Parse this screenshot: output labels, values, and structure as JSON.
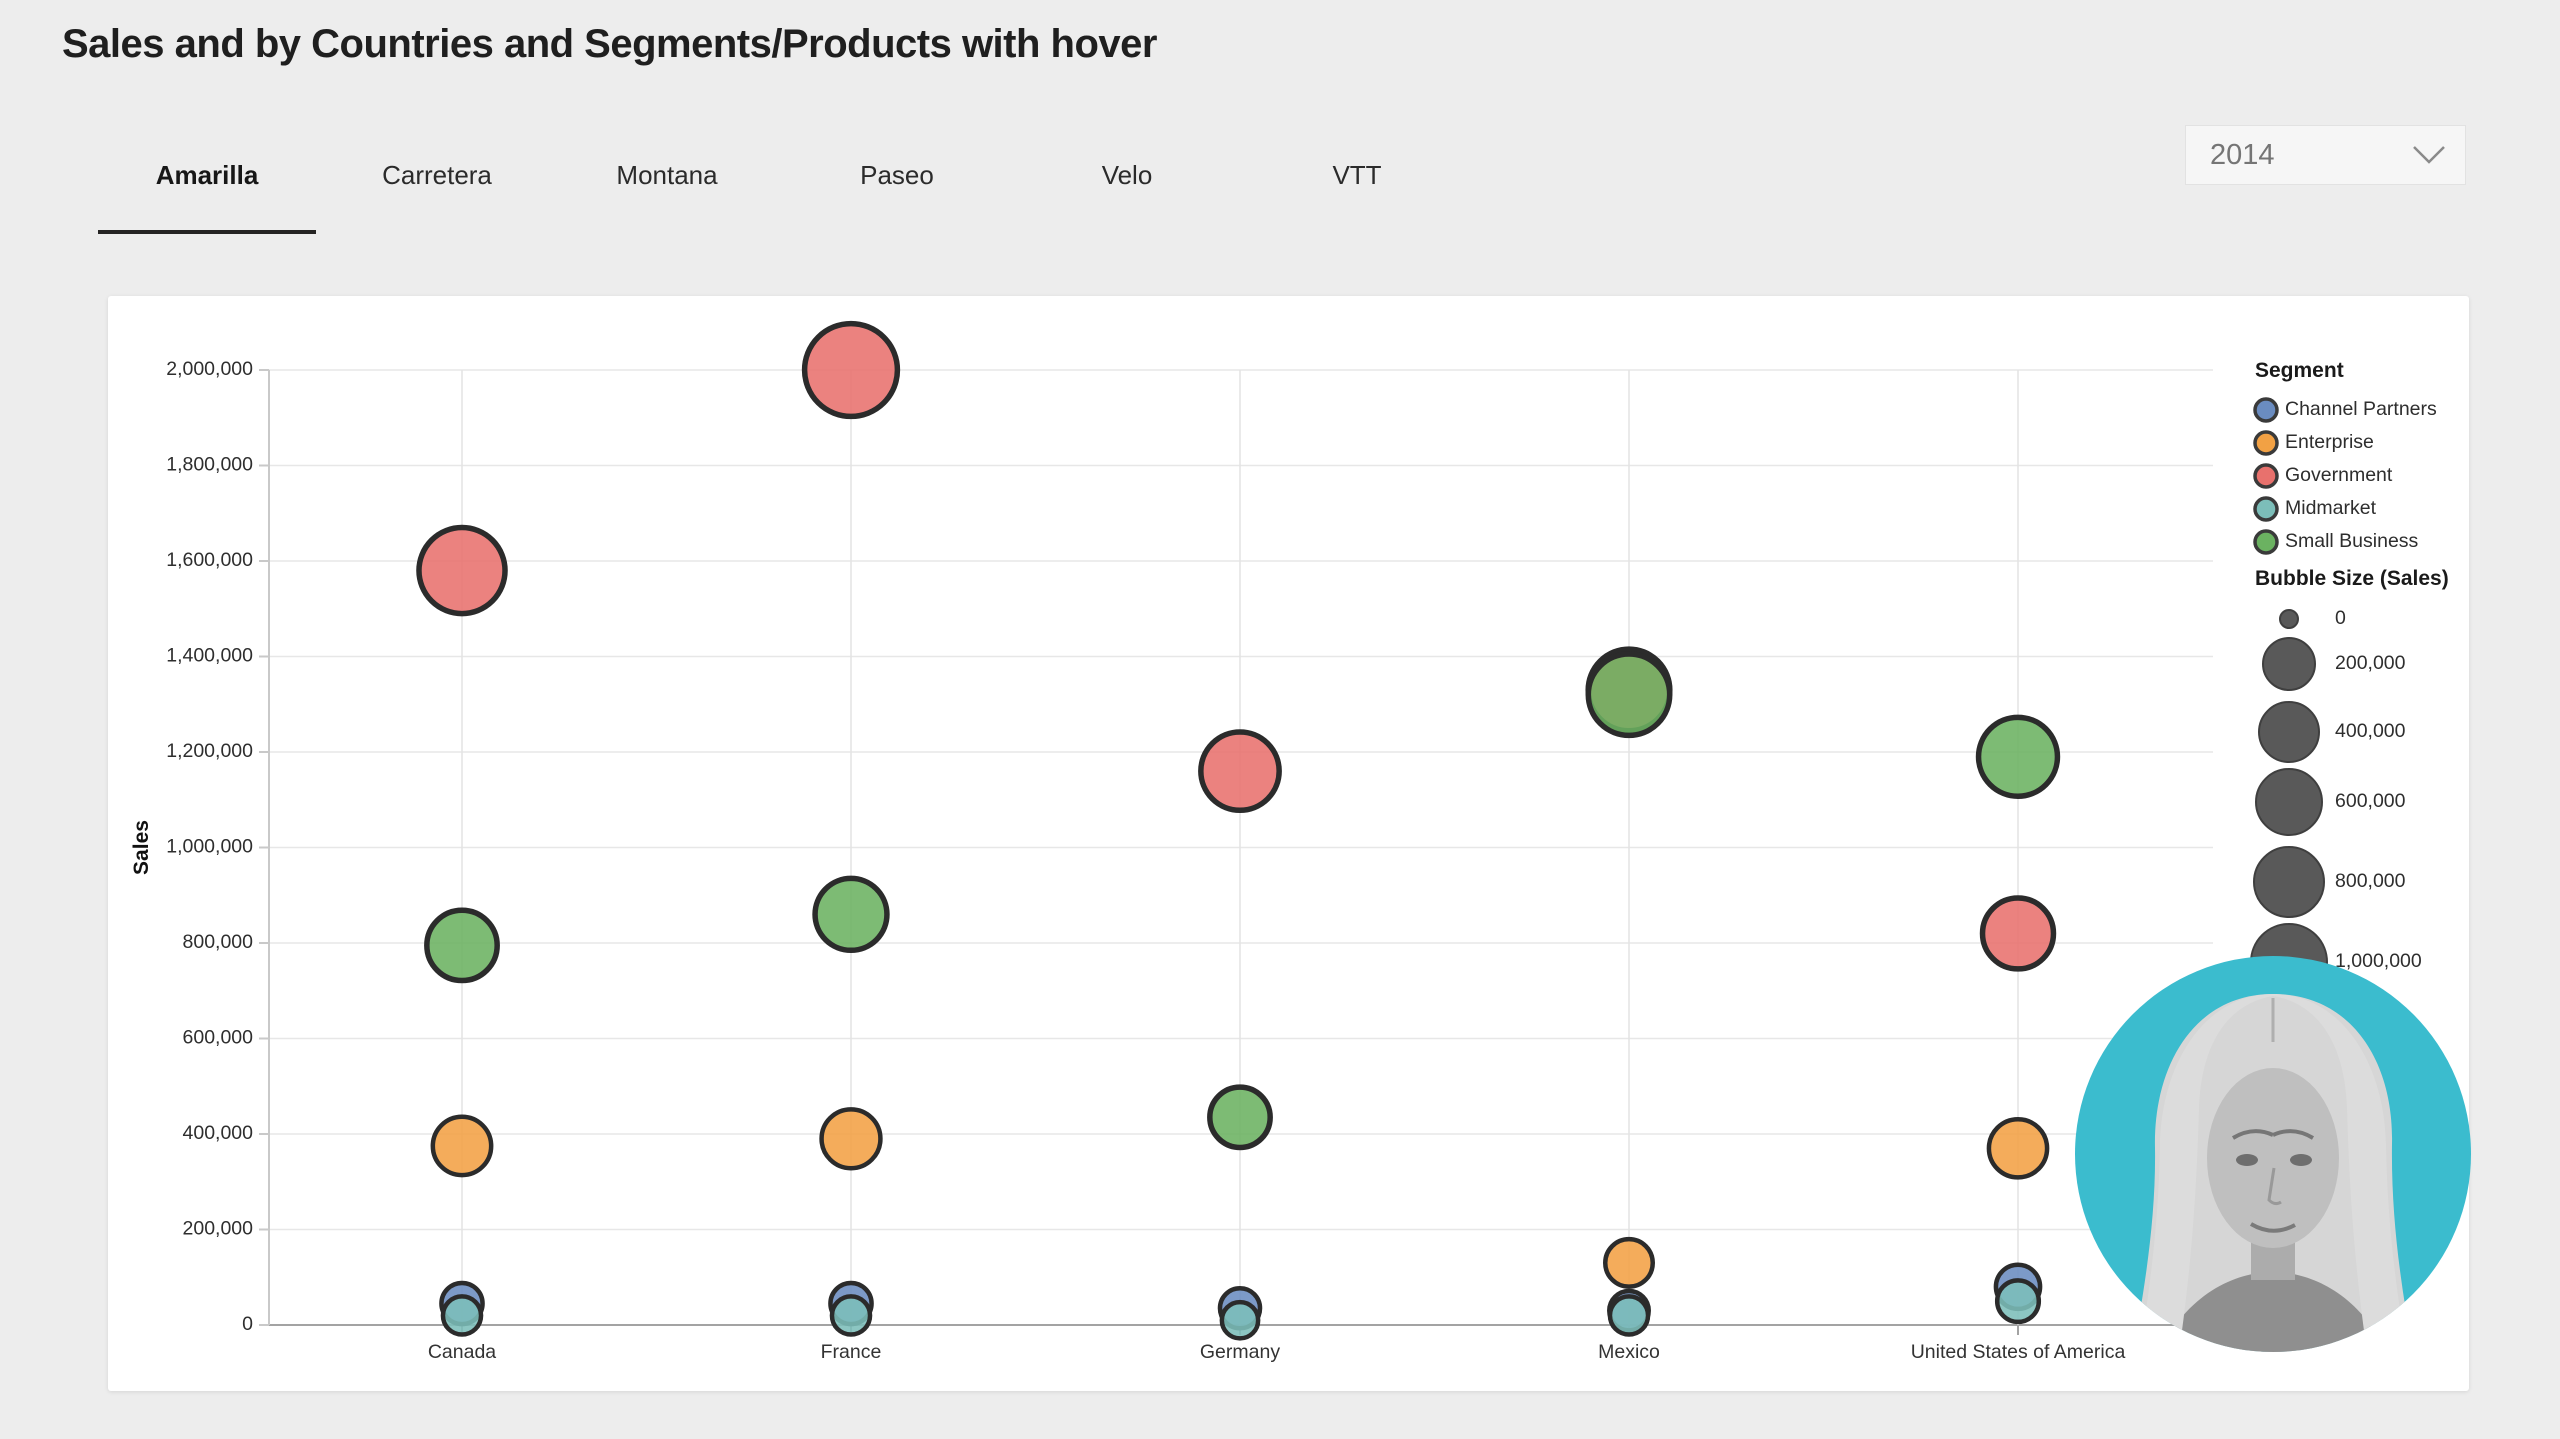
{
  "header": {
    "title": "Sales and by Countries and Segments/Products with hover"
  },
  "tabs": {
    "items": [
      "Amarilla",
      "Carretera",
      "Montana",
      "Paseo",
      "Velo",
      "VTT"
    ],
    "active": "Amarilla"
  },
  "filter": {
    "value": "2014",
    "icon": "chevron-down-icon"
  },
  "webcam": {
    "background_color": "#3BBCCE"
  },
  "chart_data": {
    "type": "scatter",
    "title": "",
    "xlabel": "",
    "ylabel": "Sales",
    "ylim": [
      0,
      2000000
    ],
    "ytick_step": 200000,
    "grid": true,
    "legend_position": "right",
    "legend_title": "Segment",
    "categories": [
      "Canada",
      "France",
      "Germany",
      "Mexico",
      "United States of America"
    ],
    "segments": [
      {
        "name": "Channel Partners",
        "color": "#6A8CC0"
      },
      {
        "name": "Enterprise",
        "color": "#F2A144"
      },
      {
        "name": "Government",
        "color": "#E8716D"
      },
      {
        "name": "Midmarket",
        "color": "#7CBEB9"
      },
      {
        "name": "Small Business",
        "color": "#6BB261"
      }
    ],
    "size_legend": {
      "title": "Bubble Size (Sales)",
      "values": [
        0,
        200000,
        400000,
        600000,
        800000,
        1000000
      ]
    },
    "points": [
      {
        "country": "Canada",
        "segment": "Government",
        "sales": 1580000
      },
      {
        "country": "Canada",
        "segment": "Small Business",
        "sales": 795000
      },
      {
        "country": "Canada",
        "segment": "Enterprise",
        "sales": 375000
      },
      {
        "country": "Canada",
        "segment": "Channel Partners",
        "sales": 45000
      },
      {
        "country": "Canada",
        "segment": "Midmarket",
        "sales": 20000
      },
      {
        "country": "France",
        "segment": "Government",
        "sales": 2000000
      },
      {
        "country": "France",
        "segment": "Small Business",
        "sales": 860000
      },
      {
        "country": "France",
        "segment": "Enterprise",
        "sales": 390000
      },
      {
        "country": "France",
        "segment": "Channel Partners",
        "sales": 45000
      },
      {
        "country": "France",
        "segment": "Midmarket",
        "sales": 20000
      },
      {
        "country": "Germany",
        "segment": "Government",
        "sales": 1160000
      },
      {
        "country": "Germany",
        "segment": "Small Business",
        "sales": 435000
      },
      {
        "country": "Germany",
        "segment": "Channel Partners",
        "sales": 35000
      },
      {
        "country": "Germany",
        "segment": "Midmarket",
        "sales": 10000
      },
      {
        "country": "Mexico",
        "segment": "Government",
        "sales": 1330000
      },
      {
        "country": "Mexico",
        "segment": "Small Business",
        "sales": 1320000
      },
      {
        "country": "Mexico",
        "segment": "Enterprise",
        "sales": 130000
      },
      {
        "country": "Mexico",
        "segment": "Channel Partners",
        "sales": 30000
      },
      {
        "country": "Mexico",
        "segment": "Midmarket",
        "sales": 20000
      },
      {
        "country": "United States of America",
        "segment": "Small Business",
        "sales": 1190000
      },
      {
        "country": "United States of America",
        "segment": "Government",
        "sales": 820000
      },
      {
        "country": "United States of America",
        "segment": "Enterprise",
        "sales": 370000
      },
      {
        "country": "United States of America",
        "segment": "Channel Partners",
        "sales": 80000
      },
      {
        "country": "United States of America",
        "segment": "Midmarket",
        "sales": 50000
      }
    ]
  }
}
